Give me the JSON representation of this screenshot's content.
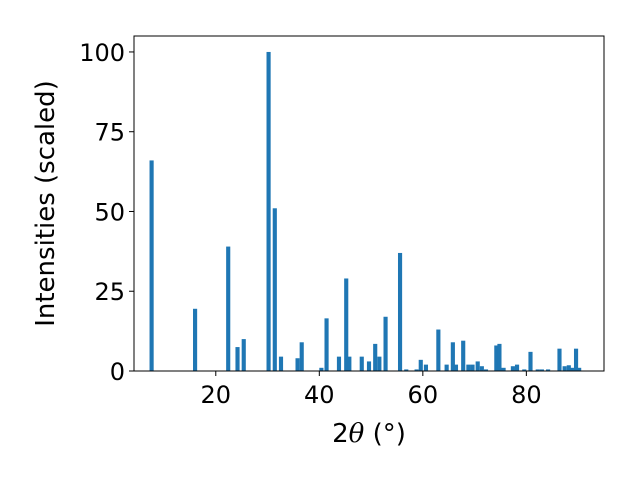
{
  "chart_data": {
    "type": "bar",
    "xlabel_prefix": "2",
    "xlabel_symbol": "θ",
    "xlabel_suffix": " (°)",
    "ylabel": "Intensities (scaled)",
    "xlim": [
      4.2,
      95
    ],
    "ylim": [
      0,
      105
    ],
    "xticks": [
      20,
      40,
      60,
      80
    ],
    "yticks": [
      0,
      25,
      50,
      75,
      100
    ],
    "bar_width": 0.8,
    "color": "#1f77b4",
    "grid": false,
    "x": [
      7.6,
      16.0,
      22.4,
      24.2,
      25.4,
      30.2,
      31.4,
      32.6,
      35.8,
      36.6,
      40.4,
      41.4,
      43.8,
      45.2,
      45.8,
      48.2,
      49.6,
      50.8,
      51.6,
      52.8,
      55.6,
      56.8,
      58.8,
      59.6,
      60.6,
      63.0,
      64.6,
      65.8,
      66.4,
      67.8,
      68.8,
      69.6,
      70.6,
      71.4,
      72.2,
      74.2,
      74.8,
      75.6,
      77.4,
      78.2,
      79.6,
      80.8,
      82.2,
      83.0,
      84.2,
      86.4,
      87.4,
      88.2,
      88.8,
      89.6,
      90.2
    ],
    "values": [
      66,
      19.5,
      39,
      7.5,
      10,
      100,
      51,
      4.5,
      4,
      9,
      1,
      16.5,
      4.5,
      29,
      4.5,
      4.5,
      3,
      8.5,
      4.5,
      17,
      37,
      0.5,
      0.5,
      3.5,
      2,
      13,
      2,
      9,
      2,
      9.5,
      2,
      2,
      3,
      1.5,
      0.5,
      8,
      8.5,
      1,
      1.5,
      2,
      0.5,
      6,
      0.5,
      0.5,
      0.5,
      7,
      1.5,
      1.8,
      1,
      7,
      1
    ]
  }
}
